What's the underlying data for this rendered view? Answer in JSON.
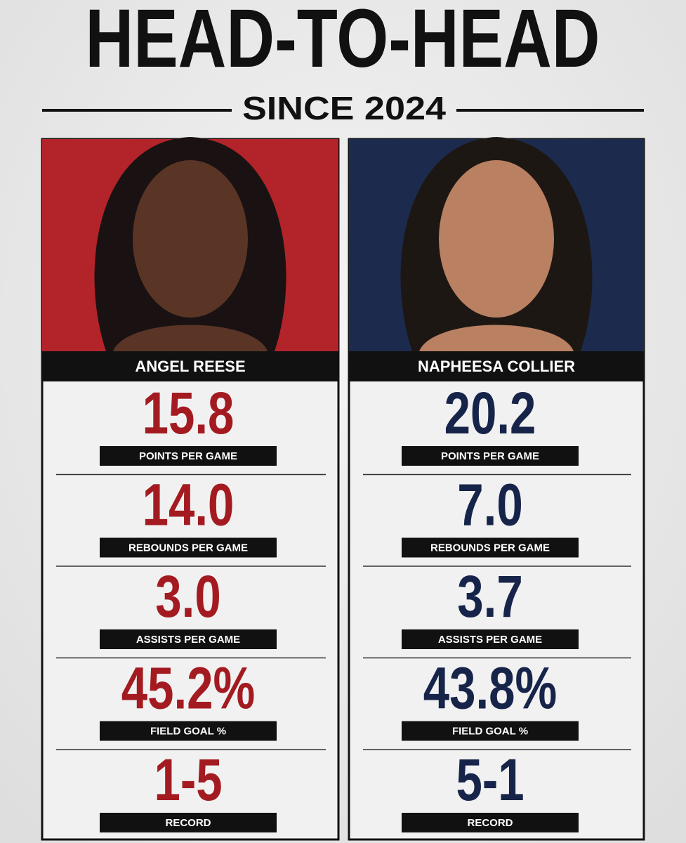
{
  "header": {
    "title": "HEAD-TO-HEAD",
    "subtitle": "SINCE 2024"
  },
  "players": [
    {
      "name": "ANGEL REESE",
      "stats": [
        {
          "value": "15.8",
          "label": "POINTS PER GAME"
        },
        {
          "value": "14.0",
          "label": "REBOUNDS PER GAME"
        },
        {
          "value": "3.0",
          "label": "ASSISTS PER GAME"
        },
        {
          "value": "45.2%",
          "label": "FIELD GOAL %"
        },
        {
          "value": "1-5",
          "label": "RECORD"
        }
      ]
    },
    {
      "name": "NAPHEESA COLLIER",
      "stats": [
        {
          "value": "20.2",
          "label": "POINTS PER GAME"
        },
        {
          "value": "7.0",
          "label": "REBOUNDS PER GAME"
        },
        {
          "value": "3.7",
          "label": "ASSISTS PER GAME"
        },
        {
          "value": "43.8%",
          "label": "FIELD GOAL %"
        },
        {
          "value": "5-1",
          "label": "RECORD"
        }
      ]
    }
  ]
}
